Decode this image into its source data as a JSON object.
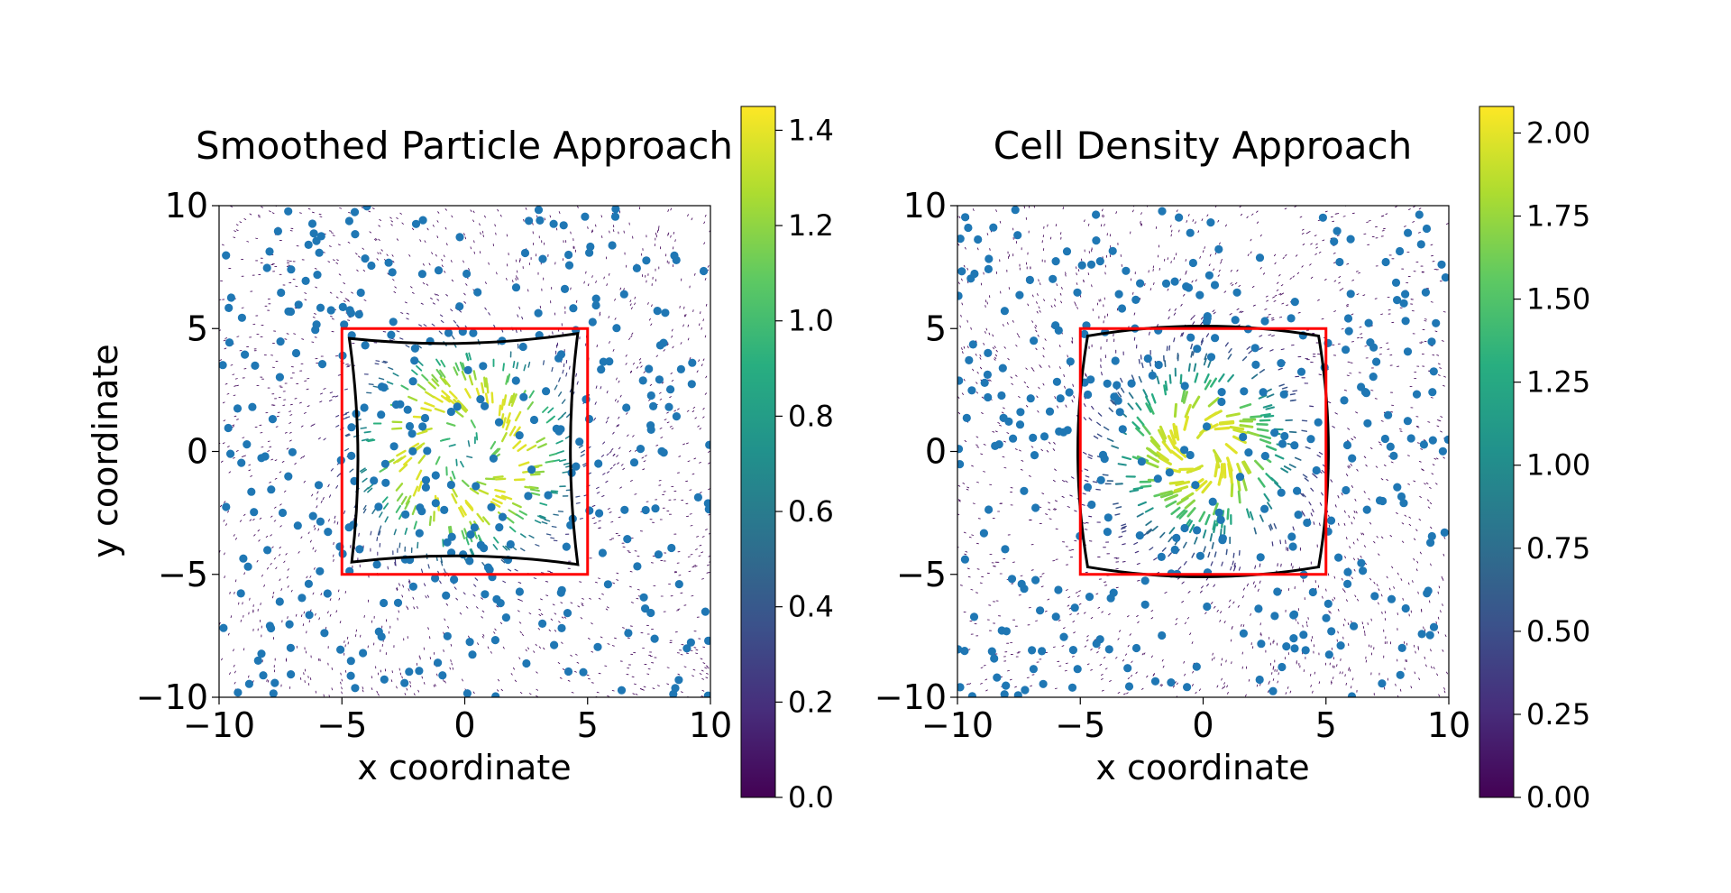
{
  "chart_data": [
    {
      "type": "scatter",
      "title": "Smoothed Particle Approach",
      "xlabel": "x coordinate",
      "ylabel": "y coordinate",
      "xlim": [
        -10,
        10
      ],
      "ylim": [
        -10,
        10
      ],
      "xticks": [
        "−10",
        "−5",
        "0",
        "5",
        "10"
      ],
      "yticks": [
        "−10",
        "−5",
        "0",
        "5",
        "10"
      ],
      "grid": false,
      "point_color": "#1f77b4",
      "reference_square": {
        "color": "#ff0000",
        "x": [
          -5,
          5
        ],
        "y": [
          -5,
          5
        ]
      },
      "deformed_outline": {
        "color": "#000000",
        "corners": [
          [
            -4.7,
            4.6
          ],
          [
            4.6,
            4.8
          ],
          [
            4.6,
            -4.6
          ],
          [
            -4.6,
            -4.5
          ]
        ],
        "edge_bulge": -0.3
      },
      "field": {
        "colormap": "viridis",
        "peak_value": 1.35,
        "peak_radius": 2.3,
        "spread": 2.2
      },
      "colorbar": {
        "min": 0,
        "max": 1.45,
        "ticks": [
          0.0,
          0.2,
          0.4,
          0.6,
          0.8,
          1.0,
          1.2,
          1.4
        ],
        "tick_labels": [
          "0.0",
          "0.2",
          "0.4",
          "0.6",
          "0.8",
          "1.0",
          "1.2",
          "1.4"
        ]
      }
    },
    {
      "type": "scatter",
      "title": "Cell Density Approach",
      "xlabel": "x coordinate",
      "ylabel": "",
      "xlim": [
        -10,
        10
      ],
      "ylim": [
        -10,
        10
      ],
      "xticks": [
        "−10",
        "−5",
        "0",
        "5",
        "10"
      ],
      "yticks": [
        "−10",
        "−5",
        "0",
        "5",
        "10"
      ],
      "grid": false,
      "point_color": "#1f77b4",
      "reference_square": {
        "color": "#ff0000",
        "x": [
          -5,
          5
        ],
        "y": [
          -5,
          5
        ]
      },
      "deformed_outline": {
        "color": "#000000",
        "corners": [
          [
            -4.7,
            4.7
          ],
          [
            4.7,
            4.7
          ],
          [
            4.7,
            -4.7
          ],
          [
            -4.7,
            -4.7
          ]
        ],
        "edge_bulge": 0.4
      },
      "field": {
        "colormap": "viridis",
        "peak_value": 1.95,
        "peak_radius": 1.2,
        "spread": 2.6
      },
      "colorbar": {
        "min": 0,
        "max": 2.08,
        "ticks": [
          0.0,
          0.25,
          0.5,
          0.75,
          1.0,
          1.25,
          1.5,
          1.75,
          2.0
        ],
        "tick_labels": [
          "0.00",
          "0.25",
          "0.50",
          "0.75",
          "1.00",
          "1.25",
          "1.50",
          "1.75",
          "2.00"
        ]
      }
    }
  ]
}
